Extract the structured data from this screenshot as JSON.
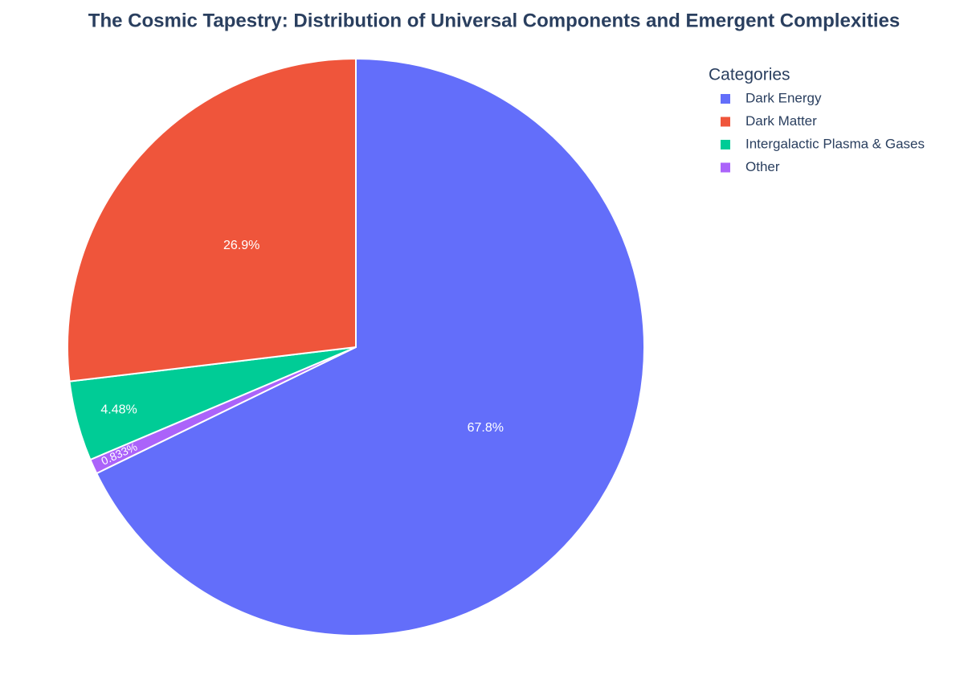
{
  "chart_data": {
    "type": "pie",
    "title": "The Cosmic Tapestry: Distribution of Universal Components and Emergent Complexities",
    "legend_title": "Categories",
    "categories": [
      "Dark Energy",
      "Dark Matter",
      "Intergalactic Plasma & Gases",
      "Other"
    ],
    "values": [
      67.8,
      26.9,
      4.48,
      0.833
    ],
    "value_labels": [
      "67.8%",
      "26.9%",
      "4.48%",
      "0.833%"
    ],
    "colors": [
      "#636efa",
      "#ef553b",
      "#00cc96",
      "#ab63fa"
    ],
    "legend": "top-right"
  }
}
